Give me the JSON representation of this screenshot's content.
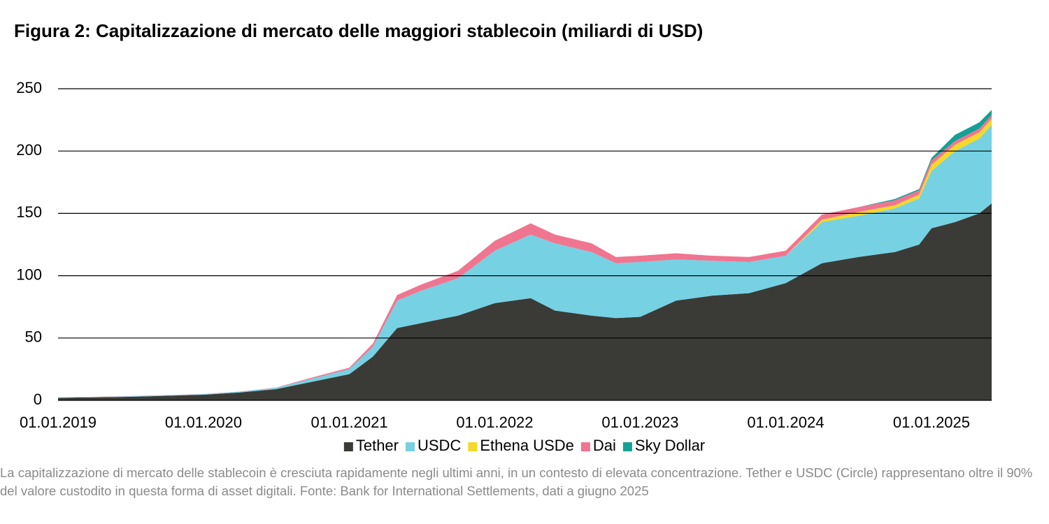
{
  "chart_data": {
    "type": "stacked-area",
    "title": "Figura 2: Capitalizzazione di mercato delle maggiori stablecoin (miliardi di USD)",
    "note": "La capitalizzazione di mercato delle stablecoin è cresciuta rapidamente negli ultimi anni, in un contesto di elevata concentrazione. Tether e USDC (Circle) rappresentano oltre il 90% del valore custodito in questa forma di asset digitali. Fonte: Bank for International Settlements, dati a giugno 2025",
    "x": [
      "01.01.2019",
      "01.07.2019",
      "01.01.2020",
      "01.04.2020",
      "01.07.2020",
      "01.10.2020",
      "01.01.2021",
      "01.03.2021",
      "01.05.2021",
      "01.07.2021",
      "01.10.2021",
      "01.01.2022",
      "01.04.2022",
      "01.06.2022",
      "01.09.2022",
      "01.11.2022",
      "01.01.2023",
      "01.04.2023",
      "01.07.2023",
      "01.10.2023",
      "01.01.2024",
      "01.04.2024",
      "01.07.2024",
      "01.10.2024",
      "01.12.2024",
      "01.01.2025",
      "01.03.2025",
      "01.05.2025",
      "01.06.2025"
    ],
    "series": [
      {
        "name": "Tether",
        "color": "#3a3b37",
        "values": [
          2.0,
          2.8,
          4.5,
          6.3,
          9.0,
          15.0,
          21.0,
          35.0,
          58.0,
          62.0,
          68.0,
          78.0,
          82.0,
          72.0,
          68.0,
          66.0,
          67.0,
          80.0,
          84.0,
          86.0,
          94.0,
          110.0,
          115.0,
          119.0,
          125.0,
          138.0,
          143.0,
          150.0,
          158.0
        ]
      },
      {
        "name": "USDC",
        "color": "#76d1e3",
        "values": [
          0.3,
          0.4,
          0.5,
          0.7,
          1.0,
          2.5,
          4.0,
          8.0,
          22.0,
          26.0,
          30.0,
          42.0,
          51.0,
          54.0,
          51.0,
          44.0,
          44.0,
          33.0,
          28.0,
          25.0,
          22.0,
          33.0,
          33.0,
          35.0,
          37.0,
          46.0,
          57.0,
          60.0,
          63.0
        ]
      },
      {
        "name": "Ethena USDe",
        "color": "#f5d829",
        "values": [
          0,
          0,
          0,
          0,
          0,
          0,
          0,
          0,
          0,
          0,
          0,
          0,
          0,
          0,
          0,
          0,
          0,
          0,
          0,
          0,
          0,
          2.0,
          3.0,
          2.5,
          3.0,
          5.0,
          5.0,
          5.0,
          5.0
        ]
      },
      {
        "name": "Dai",
        "color": "#f07590",
        "values": [
          0.1,
          0.2,
          0.1,
          0.1,
          0.2,
          0.9,
          1.2,
          2.5,
          4.5,
          5.0,
          6.0,
          8.0,
          9.0,
          7.0,
          7.0,
          5.0,
          5.0,
          5.0,
          4.0,
          4.0,
          4.0,
          4.0,
          4.0,
          4.0,
          3.5,
          3.5,
          3.0,
          3.0,
          3.0
        ]
      },
      {
        "name": "Sky Dollar",
        "color": "#13a095",
        "values": [
          0,
          0,
          0,
          0,
          0,
          0,
          0,
          0,
          0,
          0,
          0,
          0,
          0,
          0,
          0,
          0,
          0,
          0,
          0,
          0,
          0,
          0,
          0,
          1.0,
          1.0,
          2.0,
          5.0,
          5.0,
          4.0
        ]
      }
    ],
    "xlim": [
      "01.01.2019",
      "01.06.2025"
    ],
    "xticks": [
      "01.01.2019",
      "01.01.2020",
      "01.01.2021",
      "01.01.2022",
      "01.01.2023",
      "01.01.2024",
      "01.01.2025"
    ],
    "ylim": [
      0,
      250
    ],
    "yticks": [
      0,
      50,
      100,
      150,
      200,
      250
    ],
    "grid": true,
    "legend": "bottom"
  }
}
